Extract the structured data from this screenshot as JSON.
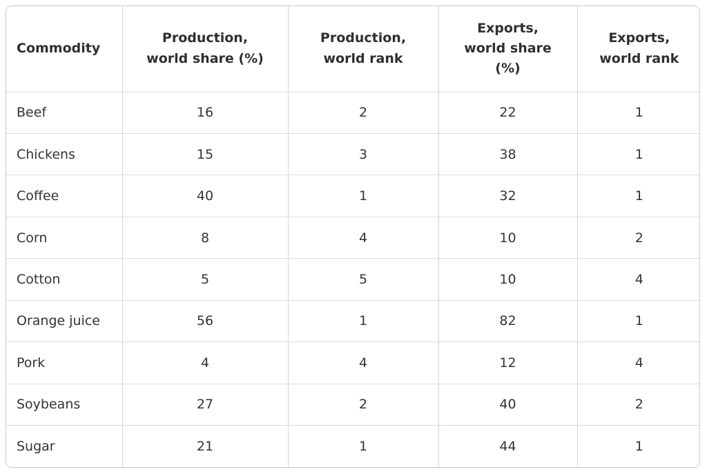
{
  "colors": {
    "background": "#ffffff",
    "outer_border": "#c9c9c9",
    "grid_line": "#d9d9d9",
    "header_text": "#2f2f2f",
    "body_text": "#333333"
  },
  "table": {
    "columns": [
      {
        "key": "commodity",
        "label": "Commodity",
        "align": "left"
      },
      {
        "key": "production_world_share",
        "label": "Production, world share (%)",
        "align": "center"
      },
      {
        "key": "production_world_rank",
        "label": "Production, world rank",
        "align": "center"
      },
      {
        "key": "exports_world_share",
        "label": "Exports, world share (%)",
        "align": "center"
      },
      {
        "key": "exports_world_rank",
        "label": "Exports, world rank",
        "align": "center"
      }
    ],
    "rows": [
      {
        "commodity": "Beef",
        "production_world_share": 16,
        "production_world_rank": 2,
        "exports_world_share": 22,
        "exports_world_rank": 1
      },
      {
        "commodity": "Chickens",
        "production_world_share": 15,
        "production_world_rank": 3,
        "exports_world_share": 38,
        "exports_world_rank": 1
      },
      {
        "commodity": "Coffee",
        "production_world_share": 40,
        "production_world_rank": 1,
        "exports_world_share": 32,
        "exports_world_rank": 1
      },
      {
        "commodity": "Corn",
        "production_world_share": 8,
        "production_world_rank": 4,
        "exports_world_share": 10,
        "exports_world_rank": 2
      },
      {
        "commodity": "Cotton",
        "production_world_share": 5,
        "production_world_rank": 5,
        "exports_world_share": 10,
        "exports_world_rank": 4
      },
      {
        "commodity": "Orange juice",
        "production_world_share": 56,
        "production_world_rank": 1,
        "exports_world_share": 82,
        "exports_world_rank": 1
      },
      {
        "commodity": "Pork",
        "production_world_share": 4,
        "production_world_rank": 4,
        "exports_world_share": 12,
        "exports_world_rank": 4
      },
      {
        "commodity": "Soybeans",
        "production_world_share": 27,
        "production_world_rank": 2,
        "exports_world_share": 40,
        "exports_world_rank": 2
      },
      {
        "commodity": "Sugar",
        "production_world_share": 21,
        "production_world_rank": 1,
        "exports_world_share": 44,
        "exports_world_rank": 1
      }
    ]
  },
  "chart_data": {
    "type": "table",
    "title": "",
    "columns": [
      "Commodity",
      "Production, world share (%)",
      "Production, world rank",
      "Exports, world share (%)",
      "Exports, world rank"
    ],
    "rows": [
      [
        "Beef",
        16,
        2,
        22,
        1
      ],
      [
        "Chickens",
        15,
        3,
        38,
        1
      ],
      [
        "Coffee",
        40,
        1,
        32,
        1
      ],
      [
        "Corn",
        8,
        4,
        10,
        2
      ],
      [
        "Cotton",
        5,
        5,
        10,
        4
      ],
      [
        "Orange juice",
        56,
        1,
        82,
        1
      ],
      [
        "Pork",
        4,
        4,
        12,
        4
      ],
      [
        "Soybeans",
        27,
        2,
        40,
        2
      ],
      [
        "Sugar",
        21,
        1,
        44,
        1
      ]
    ]
  }
}
